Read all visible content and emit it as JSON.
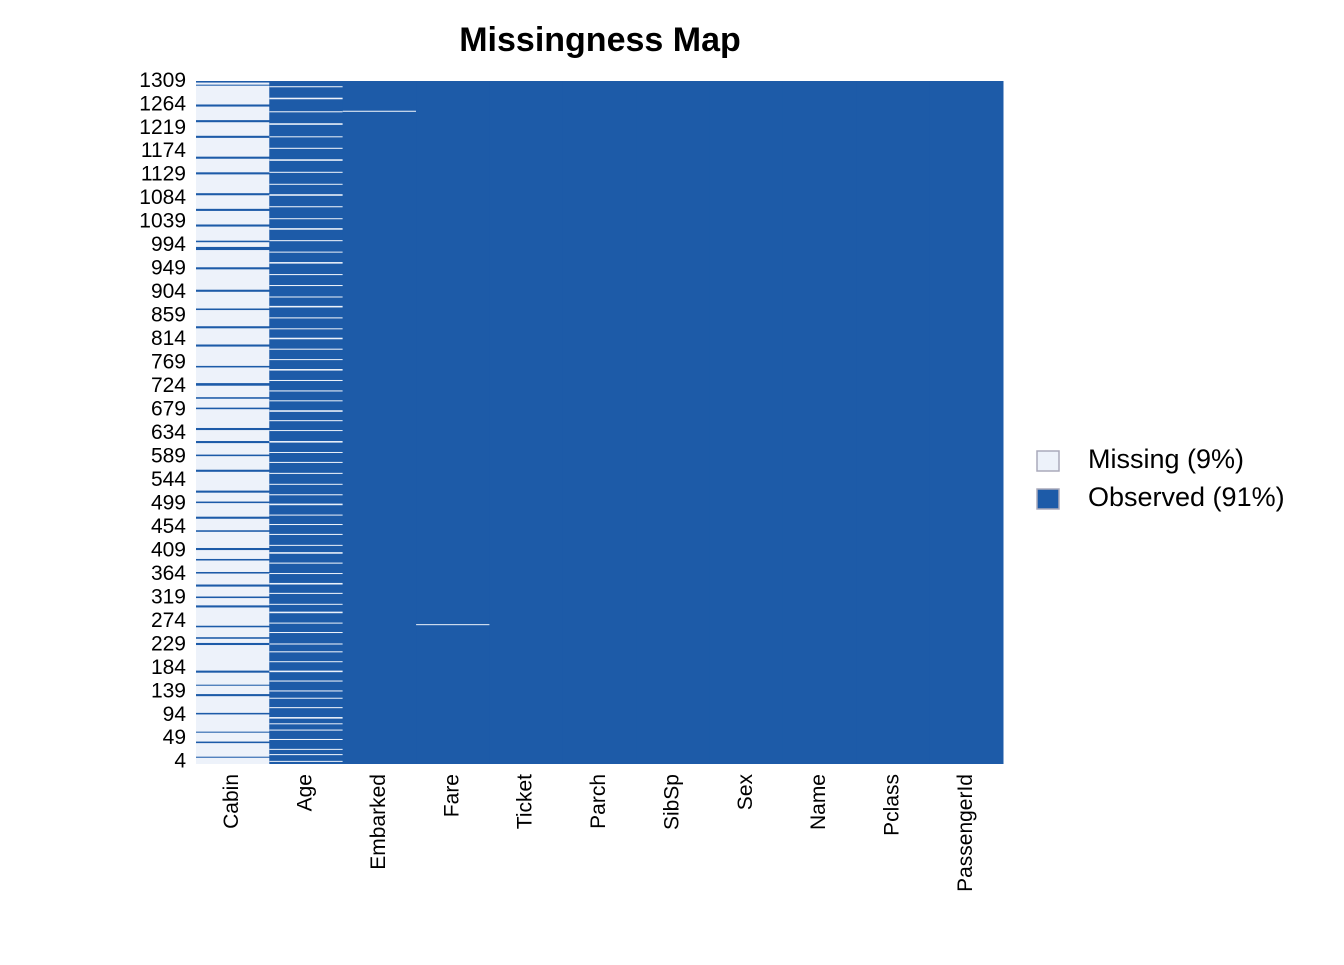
{
  "chart_data": {
    "type": "missingness",
    "title": "Missingness Map",
    "categories": [
      "Cabin",
      "Age",
      "Embarked",
      "Fare",
      "Ticket",
      "Parch",
      "SibSp",
      "Sex",
      "Name",
      "Pclass",
      "PassengerId"
    ],
    "ylim": [
      1,
      1309
    ],
    "yticks": [
      4,
      49,
      94,
      139,
      184,
      229,
      274,
      319,
      364,
      409,
      454,
      499,
      544,
      589,
      634,
      679,
      724,
      769,
      814,
      859,
      904,
      949,
      994,
      1039,
      1084,
      1129,
      1174,
      1219,
      1264,
      1309
    ],
    "legend_entries": [
      {
        "name": "Missing (9%)",
        "color": "#edf2fa"
      },
      {
        "name": "Observed (91%)",
        "color": "#1d5ba8"
      }
    ],
    "legend_position": "right",
    "missing_runs": [
      [
        [
          1,
          12
        ],
        [
          15,
          40
        ],
        [
          44,
          60
        ],
        [
          63,
          95
        ],
        [
          99,
          130
        ],
        [
          135,
          150
        ],
        [
          153,
          175
        ],
        [
          180,
          228
        ],
        [
          233,
          240
        ],
        [
          244,
          262
        ],
        [
          266,
          300
        ],
        [
          305,
          318
        ],
        [
          322,
          340
        ],
        [
          345,
          365
        ],
        [
          369,
          390
        ],
        [
          394,
          410
        ],
        [
          415,
          445
        ],
        [
          449,
          470
        ],
        [
          475,
          500
        ],
        [
          504,
          520
        ],
        [
          525,
          560
        ],
        [
          565,
          590
        ],
        [
          594,
          615
        ],
        [
          620,
          640
        ],
        [
          645,
          680
        ],
        [
          684,
          700
        ],
        [
          704,
          725
        ],
        [
          731,
          760
        ],
        [
          764,
          800
        ],
        [
          805,
          835
        ],
        [
          840,
          870
        ],
        [
          874,
          905
        ],
        [
          910,
          948
        ],
        [
          953,
          985
        ],
        [
          992,
          1000
        ],
        [
          1004,
          1030
        ],
        [
          1035,
          1060
        ],
        [
          1065,
          1090
        ],
        [
          1095,
          1130
        ],
        [
          1135,
          1160
        ],
        [
          1165,
          1200
        ],
        [
          1205,
          1230
        ],
        [
          1235,
          1260
        ],
        [
          1265,
          1300
        ],
        [
          1303,
          1306
        ]
      ],
      [
        [
          6,
          6
        ],
        [
          18,
          19
        ],
        [
          29,
          29
        ],
        [
          47,
          48
        ],
        [
          65,
          66
        ],
        [
          78,
          78
        ],
        [
          88,
          90
        ],
        [
          108,
          109
        ],
        [
          127,
          127
        ],
        [
          140,
          141
        ],
        [
          159,
          160
        ],
        [
          177,
          179
        ],
        [
          197,
          197
        ],
        [
          215,
          216
        ],
        [
          230,
          231
        ],
        [
          252,
          253
        ],
        [
          271,
          271
        ],
        [
          290,
          292
        ],
        [
          307,
          307
        ],
        [
          327,
          328
        ],
        [
          345,
          347
        ],
        [
          366,
          366
        ],
        [
          385,
          386
        ],
        [
          404,
          406
        ],
        [
          420,
          420
        ],
        [
          440,
          441
        ],
        [
          459,
          460
        ],
        [
          478,
          478
        ],
        [
          497,
          499
        ],
        [
          516,
          517
        ],
        [
          537,
          537
        ],
        [
          557,
          558
        ],
        [
          578,
          579
        ],
        [
          598,
          598
        ],
        [
          617,
          619
        ],
        [
          640,
          640
        ],
        [
          658,
          659
        ],
        [
          676,
          678
        ],
        [
          697,
          697
        ],
        [
          715,
          716
        ],
        [
          735,
          736
        ],
        [
          755,
          757
        ],
        [
          776,
          776
        ],
        [
          795,
          796
        ],
        [
          815,
          817
        ],
        [
          835,
          835
        ],
        [
          855,
          856
        ],
        [
          876,
          878
        ],
        [
          896,
          896
        ],
        [
          917,
          918
        ],
        [
          938,
          939
        ],
        [
          960,
          962
        ],
        [
          982,
          982
        ],
        [
          1003,
          1004
        ],
        [
          1025,
          1027
        ],
        [
          1046,
          1046
        ],
        [
          1068,
          1069
        ],
        [
          1090,
          1092
        ],
        [
          1112,
          1112
        ],
        [
          1134,
          1135
        ],
        [
          1157,
          1159
        ],
        [
          1180,
          1181
        ],
        [
          1203,
          1203
        ],
        [
          1226,
          1228
        ],
        [
          1250,
          1251
        ],
        [
          1275,
          1277
        ],
        [
          1298,
          1299
        ]
      ],
      [
        [
          1251,
          1252
        ]
      ],
      [
        [
          268,
          268
        ]
      ],
      [],
      [],
      [],
      [],
      [],
      [],
      []
    ]
  }
}
